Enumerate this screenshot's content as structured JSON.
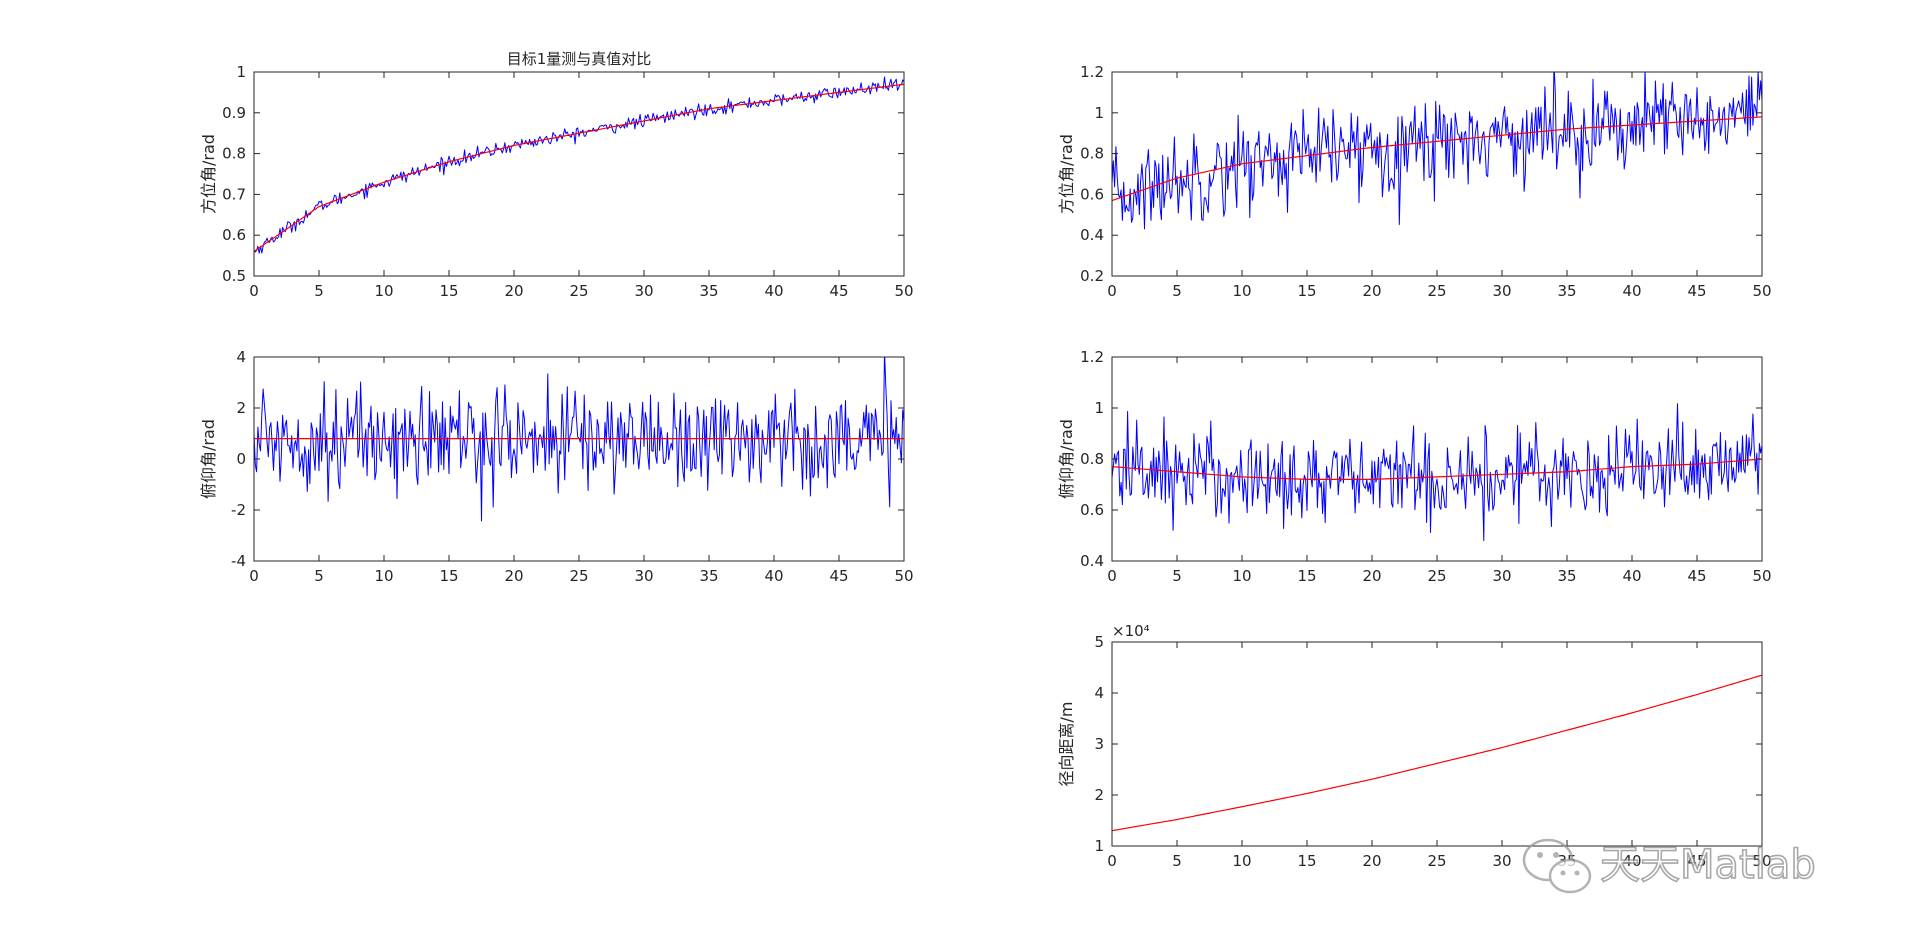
{
  "figure": {
    "background": "#ffffff",
    "axis_color": "#262626"
  },
  "colors": {
    "measured": "#0000ff",
    "true": "#ff0000"
  },
  "watermark": {
    "text": "天天Matlab",
    "icon": "wechat-icon"
  },
  "chart_data": [
    {
      "id": "azimuth-1",
      "type": "line",
      "title": "目标1量测与真值对比",
      "xlabel": "",
      "ylabel": "方位角/rad",
      "xlim": [
        0,
        50
      ],
      "ylim": [
        0.5,
        1
      ],
      "xticks": [
        "0",
        "5",
        "10",
        "15",
        "20",
        "25",
        "30",
        "35",
        "40",
        "45",
        "50"
      ],
      "yticks": [
        "0.5",
        "0.6",
        "0.7",
        "0.8",
        "0.9",
        "1"
      ],
      "x_step": 0.1,
      "noise_std": 0.008,
      "series": [
        {
          "role": "measured",
          "color": "#0000ff",
          "x": [
            0,
            5,
            10,
            15,
            20,
            25,
            30,
            35,
            40,
            45,
            50
          ],
          "y": [
            0.56,
            0.67,
            0.73,
            0.78,
            0.82,
            0.85,
            0.88,
            0.91,
            0.93,
            0.95,
            0.97
          ]
        },
        {
          "role": "true",
          "color": "#ff0000",
          "x": [
            0,
            5,
            10,
            15,
            20,
            25,
            30,
            35,
            40,
            45,
            50
          ],
          "y": [
            0.56,
            0.67,
            0.73,
            0.78,
            0.82,
            0.85,
            0.88,
            0.91,
            0.93,
            0.95,
            0.97
          ]
        }
      ]
    },
    {
      "id": "azimuth-2",
      "type": "line",
      "title": "",
      "xlabel": "",
      "ylabel": "方位角/rad",
      "xlim": [
        0,
        50
      ],
      "ylim": [
        0.2,
        1.2
      ],
      "xticks": [
        "0",
        "5",
        "10",
        "15",
        "20",
        "25",
        "30",
        "35",
        "40",
        "45",
        "50"
      ],
      "yticks": [
        "0.2",
        "0.4",
        "0.6",
        "0.8",
        "1",
        "1.2"
      ],
      "x_step": 0.1,
      "noise_std": 0.11,
      "series": [
        {
          "role": "measured",
          "color": "#0000ff",
          "x": [
            0,
            5,
            10,
            15,
            20,
            25,
            30,
            35,
            40,
            45,
            50
          ],
          "y": [
            0.57,
            0.68,
            0.75,
            0.79,
            0.83,
            0.86,
            0.89,
            0.92,
            0.94,
            0.96,
            0.98
          ]
        },
        {
          "role": "true",
          "color": "#ff0000",
          "x": [
            0,
            5,
            10,
            15,
            20,
            25,
            30,
            35,
            40,
            45,
            50
          ],
          "y": [
            0.57,
            0.68,
            0.75,
            0.79,
            0.83,
            0.86,
            0.89,
            0.92,
            0.94,
            0.96,
            0.98
          ]
        }
      ]
    },
    {
      "id": "elevation-1",
      "type": "line",
      "title": "",
      "xlabel": "",
      "ylabel": "俯仰角/rad",
      "xlim": [
        0,
        50
      ],
      "ylim": [
        -4,
        4
      ],
      "xticks": [
        "0",
        "5",
        "10",
        "15",
        "20",
        "25",
        "30",
        "35",
        "40",
        "45",
        "50"
      ],
      "yticks": [
        "-4",
        "-2",
        "0",
        "2",
        "4"
      ],
      "x_step": 0.1,
      "noise_std": 1.0,
      "series": [
        {
          "role": "measured",
          "color": "#0000ff",
          "x": [
            0,
            5,
            10,
            15,
            20,
            25,
            30,
            35,
            40,
            45,
            50
          ],
          "y": [
            0.8,
            0.8,
            0.8,
            0.8,
            0.8,
            0.8,
            0.8,
            0.8,
            0.8,
            0.8,
            0.8
          ]
        },
        {
          "role": "true",
          "color": "#ff0000",
          "x": [
            0,
            5,
            10,
            15,
            20,
            25,
            30,
            35,
            40,
            45,
            50
          ],
          "y": [
            0.8,
            0.8,
            0.8,
            0.8,
            0.8,
            0.8,
            0.8,
            0.8,
            0.8,
            0.8,
            0.8
          ]
        }
      ]
    },
    {
      "id": "elevation-2",
      "type": "line",
      "title": "",
      "xlabel": "",
      "ylabel": "俯仰角/rad",
      "xlim": [
        0,
        50
      ],
      "ylim": [
        0.4,
        1.2
      ],
      "xticks": [
        "0",
        "5",
        "10",
        "15",
        "20",
        "25",
        "30",
        "35",
        "40",
        "45",
        "50"
      ],
      "yticks": [
        "0.4",
        "0.6",
        "0.8",
        "1",
        "1.2"
      ],
      "x_step": 0.1,
      "noise_std": 0.09,
      "series": [
        {
          "role": "measured",
          "color": "#0000ff",
          "x": [
            0,
            5,
            10,
            15,
            20,
            25,
            30,
            35,
            40,
            45,
            50
          ],
          "y": [
            0.77,
            0.75,
            0.73,
            0.72,
            0.72,
            0.73,
            0.74,
            0.75,
            0.77,
            0.78,
            0.8
          ]
        },
        {
          "role": "true",
          "color": "#ff0000",
          "x": [
            0,
            5,
            10,
            15,
            20,
            25,
            30,
            35,
            40,
            45,
            50
          ],
          "y": [
            0.77,
            0.75,
            0.73,
            0.72,
            0.72,
            0.73,
            0.74,
            0.75,
            0.77,
            0.78,
            0.8
          ]
        }
      ]
    },
    {
      "id": "range",
      "type": "line",
      "title": "",
      "xlabel": "",
      "ylabel": "径向距离/m",
      "exponent_label": "×10⁴",
      "xlim": [
        0,
        50
      ],
      "ylim": [
        1,
        5
      ],
      "xticks": [
        "0",
        "5",
        "10",
        "15",
        "20",
        "25",
        "30",
        "35",
        "40",
        "45",
        "50"
      ],
      "yticks": [
        "1",
        "2",
        "3",
        "4",
        "5"
      ],
      "series": [
        {
          "role": "true",
          "color": "#ff0000",
          "x": [
            0,
            5,
            10,
            15,
            20,
            25,
            30,
            35,
            40,
            45,
            50
          ],
          "y": [
            1.3,
            1.52,
            1.77,
            2.03,
            2.31,
            2.62,
            2.93,
            3.27,
            3.61,
            3.97,
            4.35
          ]
        }
      ]
    }
  ]
}
